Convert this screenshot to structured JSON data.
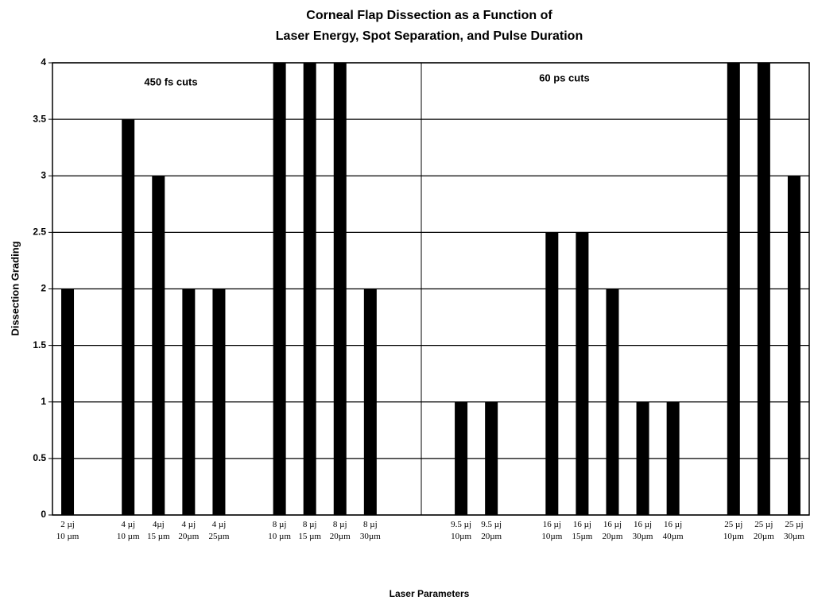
{
  "chart_data": {
    "type": "bar",
    "title": [
      "Corneal Flap Dissection as a Function of",
      "Laser Energy, Spot Separation, and Pulse Duration"
    ],
    "y_label": "Dissection Grading",
    "x_label": "Laser Parameters",
    "annotations": [
      "450 fs cuts",
      "60 ps cuts"
    ],
    "categories": [
      "2 µj\n10 µm",
      null,
      "4 µj\n10 µm",
      "4µj\n15 µm",
      "4 µj\n20µm",
      "4 µj\n25µm",
      null,
      "8 µj\n10 µm",
      "8 µj\n15 µm",
      "8 µj\n20µm",
      "8 µj\n30µm",
      null,
      null,
      "9.5 µj\n10µm",
      "9.5 µj\n20µm",
      null,
      "16 µj\n10µm",
      "16 µj\n15µm",
      "16 µj\n20µm",
      "16 µj\n30µm",
      "16 µj\n40µm",
      null,
      "25 µj\n10µm",
      "25 µj\n20µm",
      "25 µj\n30µm"
    ],
    "values": [
      2,
      null,
      3.5,
      3,
      2,
      2,
      null,
      4,
      4,
      4,
      2,
      null,
      null,
      1,
      1,
      null,
      2.5,
      2.5,
      2,
      1,
      1,
      null,
      4,
      4,
      3
    ],
    "color": "#000000",
    "ylim": [
      0,
      4
    ],
    "yticks": [
      0,
      0.5,
      1,
      1.5,
      2,
      2.5,
      3,
      3.5,
      4
    ],
    "grid": true
  }
}
